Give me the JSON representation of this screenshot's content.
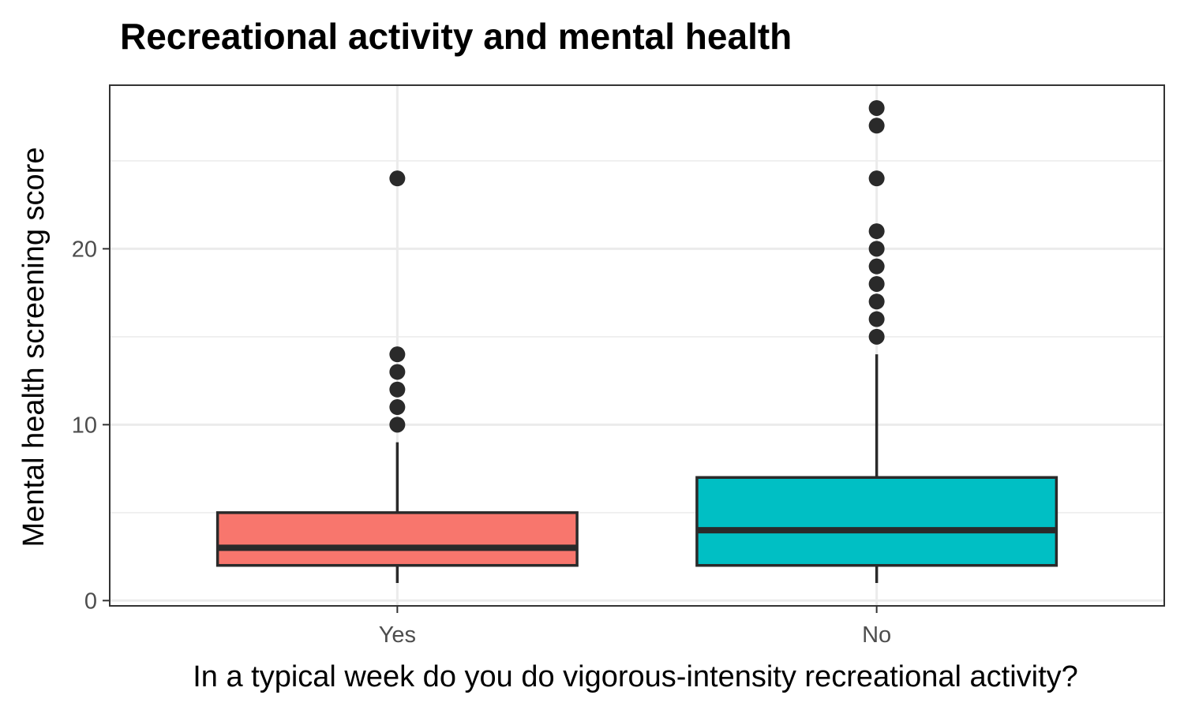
{
  "chart_data": {
    "type": "boxplot",
    "title": "Recreational activity and mental health",
    "xlabel": "In a typical week do you do vigorous-intensity recreational activity?",
    "ylabel": "Mental health screening score",
    "ylim": [
      -0.3,
      29.3
    ],
    "yticks": [
      0,
      10,
      20
    ],
    "grid": true,
    "legend": "none",
    "categories": [
      "Yes",
      "No"
    ],
    "boxes": [
      {
        "category": "Yes",
        "min": 1,
        "q1": 2,
        "median": 3,
        "q3": 5,
        "max": 9,
        "outliers": [
          10,
          11,
          12,
          13,
          14,
          24
        ],
        "color": "#F8766D"
      },
      {
        "category": "No",
        "min": 1,
        "q1": 2,
        "median": 4,
        "q3": 7,
        "max": 14,
        "outliers": [
          15,
          16,
          17,
          18,
          19,
          20,
          21,
          24,
          27,
          28
        ],
        "color": "#00BFC4"
      }
    ]
  }
}
